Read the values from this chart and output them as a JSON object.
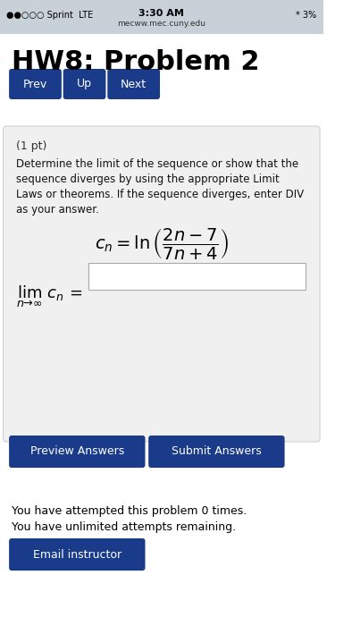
{
  "status_bar_bg": "#c8d0d8",
  "status_bar_text": "3:30 AM",
  "status_bar_left": "●●○○○ Sprint  LTE",
  "status_bar_url": "mecww.mec.cuny.edu",
  "status_bar_right": "* 3%",
  "bg_color": "#ffffff",
  "title": "HW8: Problem 2",
  "button_color": "#1a3a8a",
  "button_text_color": "#ffffff",
  "buttons": [
    "Prev",
    "Up",
    "Next"
  ],
  "problem_bg": "#f0f0f0",
  "problem_pt": "(1 pt)",
  "problem_text": "Determine the limit of the sequence or show that the\nsequence diverges by using the appropriate Limit\nLaws or theorems. If the sequence diverges, enter DIV\nas your answer.",
  "formula": "c_n = \\ln\\left(\\dfrac{2n-7}{7n+4}\\right)",
  "limit_formula": "\\lim_{n \\to \\infty} c_n =",
  "bottom_text1": "You have attempted this problem 0 times.",
  "bottom_text2": "You have unlimited attempts remaining.",
  "preview_btn": "Preview Answers",
  "submit_btn": "Submit Answers",
  "email_btn": "Email instructor",
  "text_color": "#000000",
  "body_text_color": "#333333"
}
